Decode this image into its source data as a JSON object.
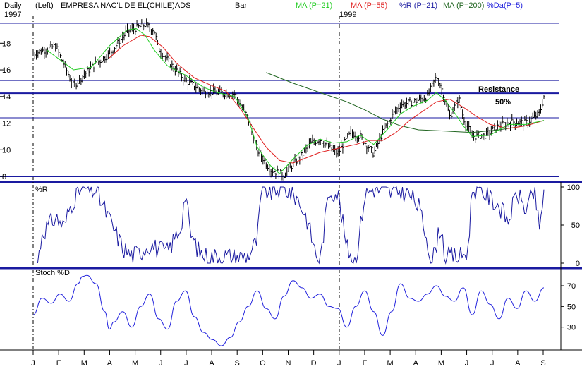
{
  "header": {
    "period": "Daily",
    "scale": "(Left)",
    "title": "EMPRESA NAC'L DE EL(CHILE)ADS",
    "bar_label": "Bar",
    "year_start": "1997",
    "year_mid": "1999",
    "indicators": [
      {
        "label": "MA (P=21)",
        "color": "#22cc22"
      },
      {
        "label": "MA (P=55)",
        "color": "#e02020"
      },
      {
        "label": "%R (P=21)",
        "color": "#1a1aa0"
      },
      {
        "label": "MA (P=200)",
        "color": "#226622"
      },
      {
        "label": "%Da(P=5)",
        "color": "#2222dd"
      }
    ]
  },
  "annotations": {
    "resistance": "Resistance",
    "fifty": "50%"
  },
  "panel_labels": {
    "pctr": "%R",
    "stoch": "Stoch %D"
  },
  "months": [
    "J",
    "F",
    "M",
    "A",
    "M",
    "J",
    "J",
    "A",
    "S",
    "O",
    "N",
    "D",
    "J",
    "F",
    "M",
    "A",
    "M",
    "J",
    "J",
    "A",
    "S"
  ],
  "chart_data": [
    {
      "type": "line",
      "title": "EMPRESA NAC'L DE EL(CHILE)ADS",
      "ylim": [
        7.8,
        19.6
      ],
      "yticks": [
        8,
        10,
        12,
        14,
        16,
        18
      ],
      "horizontal_lines": [
        8.0,
        12.4,
        13.8,
        14.25,
        15.2,
        19.5
      ],
      "price_path": [
        [
          0,
          17.2
        ],
        [
          5,
          17.8
        ],
        [
          9,
          14.8
        ],
        [
          13,
          16.2
        ],
        [
          17,
          17.2
        ],
        [
          21,
          18.9
        ],
        [
          25,
          19.4
        ],
        [
          27,
          19.0
        ],
        [
          28,
          17.6
        ],
        [
          31,
          16.3
        ],
        [
          34,
          15.2
        ],
        [
          38,
          14.4
        ],
        [
          41,
          14.3
        ],
        [
          45,
          14.2
        ],
        [
          48,
          12.3
        ],
        [
          50,
          10.0
        ],
        [
          53,
          8.5
        ],
        [
          56,
          8.1
        ],
        [
          58,
          8.9
        ],
        [
          60,
          9.6
        ],
        [
          62,
          10.5
        ],
        [
          64,
          10.8
        ],
        [
          66,
          10.2
        ],
        [
          68,
          9.7
        ],
        [
          69,
          10.3
        ],
        [
          71,
          11.3
        ],
        [
          73,
          11.0
        ],
        [
          76,
          9.7
        ],
        [
          78,
          11.3
        ],
        [
          80,
          12.5
        ],
        [
          82,
          13.4
        ],
        [
          85,
          13.6
        ],
        [
          88,
          14.0
        ],
        [
          90,
          15.5
        ],
        [
          91,
          14.8
        ],
        [
          93,
          12.5
        ],
        [
          95,
          13.9
        ],
        [
          96,
          12.4
        ],
        [
          98,
          11.0
        ],
        [
          101,
          11.1
        ],
        [
          104,
          11.8
        ],
        [
          107,
          12.1
        ],
        [
          110,
          12.0
        ],
        [
          113,
          12.7
        ],
        [
          114,
          14.0
        ]
      ],
      "ma21_path": [
        [
          3,
          17.5
        ],
        [
          9,
          16.0
        ],
        [
          13,
          16.2
        ],
        [
          17,
          17.8
        ],
        [
          21,
          19.0
        ],
        [
          23,
          19.1
        ],
        [
          25,
          18.6
        ],
        [
          27,
          17.5
        ],
        [
          30,
          16.3
        ],
        [
          34,
          15.6
        ],
        [
          38,
          14.7
        ],
        [
          41,
          14.3
        ],
        [
          45,
          14.0
        ],
        [
          48,
          12.4
        ],
        [
          50,
          10.2
        ],
        [
          53,
          8.8
        ],
        [
          55,
          8.2
        ],
        [
          58,
          9.3
        ],
        [
          61,
          10.3
        ],
        [
          64,
          10.8
        ],
        [
          67,
          10.5
        ],
        [
          70,
          10.6
        ],
        [
          73,
          11.1
        ],
        [
          76,
          10.4
        ],
        [
          79,
          11.5
        ],
        [
          82,
          12.7
        ],
        [
          85,
          13.3
        ],
        [
          88,
          13.7
        ],
        [
          90,
          14.3
        ],
        [
          92,
          13.7
        ],
        [
          94,
          12.8
        ],
        [
          96,
          11.8
        ],
        [
          98,
          11.0
        ],
        [
          102,
          11.1
        ],
        [
          106,
          11.9
        ],
        [
          110,
          11.9
        ],
        [
          114,
          12.2
        ]
      ],
      "ma55_path": [
        [
          17,
          16.9
        ],
        [
          20,
          17.8
        ],
        [
          24,
          18.6
        ],
        [
          26,
          18.5
        ],
        [
          29,
          17.7
        ],
        [
          32,
          16.5
        ],
        [
          36,
          15.4
        ],
        [
          40,
          14.8
        ],
        [
          43,
          14.4
        ],
        [
          46,
          13.2
        ],
        [
          49,
          11.7
        ],
        [
          52,
          10.2
        ],
        [
          55,
          9.2
        ],
        [
          58,
          9.0
        ],
        [
          61,
          9.4
        ],
        [
          64,
          9.8
        ],
        [
          68,
          10.1
        ],
        [
          72,
          10.4
        ],
        [
          75,
          10.7
        ],
        [
          78,
          10.7
        ],
        [
          81,
          11.3
        ],
        [
          84,
          12.2
        ],
        [
          87,
          12.9
        ],
        [
          90,
          13.6
        ],
        [
          93,
          13.8
        ],
        [
          96,
          13.2
        ],
        [
          99,
          12.5
        ],
        [
          102,
          11.9
        ],
        [
          106,
          11.6
        ],
        [
          110,
          11.8
        ],
        [
          114,
          12.2
        ]
      ],
      "ma200_path": [
        [
          52,
          15.8
        ],
        [
          58,
          15.0
        ],
        [
          64,
          14.3
        ],
        [
          70,
          13.6
        ],
        [
          74,
          13.0
        ],
        [
          78,
          12.3
        ],
        [
          82,
          11.8
        ],
        [
          86,
          11.5
        ],
        [
          92,
          11.4
        ],
        [
          98,
          11.3
        ],
        [
          104,
          11.5
        ],
        [
          110,
          11.8
        ],
        [
          114,
          12.2
        ]
      ]
    },
    {
      "type": "line",
      "title": "%R",
      "ylim": [
        0,
        100
      ],
      "yticks": [
        0,
        50,
        100
      ],
      "series": [
        {
          "name": "%R (P=21)",
          "points": [
            [
              1,
              0
            ],
            [
              2,
              40
            ],
            [
              5,
              60
            ],
            [
              7,
              48
            ],
            [
              8,
              70
            ],
            [
              10,
              95
            ],
            [
              12,
              98
            ],
            [
              14,
              95
            ],
            [
              16,
              70
            ],
            [
              18,
              45
            ],
            [
              20,
              20
            ],
            [
              22,
              10
            ],
            [
              24,
              15
            ],
            [
              26,
              25
            ],
            [
              28,
              18
            ],
            [
              30,
              15
            ],
            [
              33,
              48
            ],
            [
              34,
              95
            ],
            [
              35,
              40
            ],
            [
              37,
              15
            ],
            [
              39,
              8
            ],
            [
              42,
              10
            ],
            [
              45,
              8
            ],
            [
              48,
              10
            ],
            [
              50,
              30
            ],
            [
              51,
              97
            ],
            [
              53,
              92
            ],
            [
              55,
              98
            ],
            [
              57,
              95
            ],
            [
              59,
              85
            ],
            [
              61,
              60
            ],
            [
              63,
              15
            ],
            [
              64,
              0
            ],
            [
              66,
              95
            ],
            [
              68,
              92
            ],
            [
              70,
              20
            ],
            [
              72,
              2
            ],
            [
              74,
              90
            ],
            [
              76,
              98
            ],
            [
              78,
              95
            ],
            [
              80,
              92
            ],
            [
              82,
              95
            ],
            [
              84,
              90
            ],
            [
              86,
              75
            ],
            [
              88,
              30
            ],
            [
              89,
              0
            ],
            [
              91,
              50
            ],
            [
              92,
              5
            ],
            [
              93,
              10
            ],
            [
              95,
              8
            ],
            [
              97,
              15
            ],
            [
              98,
              98
            ],
            [
              100,
              95
            ],
            [
              102,
              85
            ],
            [
              104,
              75
            ],
            [
              106,
              55
            ],
            [
              108,
              92
            ],
            [
              110,
              70
            ],
            [
              112,
              95
            ],
            [
              113,
              40
            ],
            [
              114,
              97
            ]
          ]
        }
      ]
    },
    {
      "type": "line",
      "title": "Stoch %D",
      "ylim": [
        10,
        85
      ],
      "yticks": [
        30,
        50,
        70
      ],
      "series": [
        {
          "name": "%Da(P=5)",
          "points": [
            [
              0,
              42
            ],
            [
              2,
              58
            ],
            [
              4,
              53
            ],
            [
              6,
              62
            ],
            [
              8,
              55
            ],
            [
              10,
              72
            ],
            [
              11,
              79
            ],
            [
              12,
              80
            ],
            [
              14,
              72
            ],
            [
              16,
              45
            ],
            [
              17,
              28
            ],
            [
              18,
              35
            ],
            [
              20,
              45
            ],
            [
              22,
              30
            ],
            [
              24,
              50
            ],
            [
              26,
              62
            ],
            [
              28,
              38
            ],
            [
              30,
              28
            ],
            [
              32,
              55
            ],
            [
              34,
              65
            ],
            [
              36,
              40
            ],
            [
              38,
              25
            ],
            [
              40,
              18
            ],
            [
              42,
              12
            ],
            [
              44,
              20
            ],
            [
              46,
              35
            ],
            [
              48,
              50
            ],
            [
              50,
              65
            ],
            [
              52,
              48
            ],
            [
              54,
              38
            ],
            [
              56,
              60
            ],
            [
              58,
              75
            ],
            [
              60,
              68
            ],
            [
              62,
              58
            ],
            [
              64,
              62
            ],
            [
              66,
              50
            ],
            [
              68,
              48
            ],
            [
              70,
              30
            ],
            [
              72,
              50
            ],
            [
              74,
              65
            ],
            [
              76,
              45
            ],
            [
              78,
              22
            ],
            [
              80,
              45
            ],
            [
              82,
              72
            ],
            [
              84,
              58
            ],
            [
              86,
              55
            ],
            [
              88,
              62
            ],
            [
              90,
              70
            ],
            [
              92,
              60
            ],
            [
              94,
              55
            ],
            [
              96,
              68
            ],
            [
              98,
              42
            ],
            [
              100,
              65
            ],
            [
              102,
              52
            ],
            [
              104,
              38
            ],
            [
              106,
              58
            ],
            [
              108,
              48
            ],
            [
              110,
              65
            ],
            [
              112,
              55
            ],
            [
              114,
              68
            ]
          ]
        }
      ]
    }
  ]
}
